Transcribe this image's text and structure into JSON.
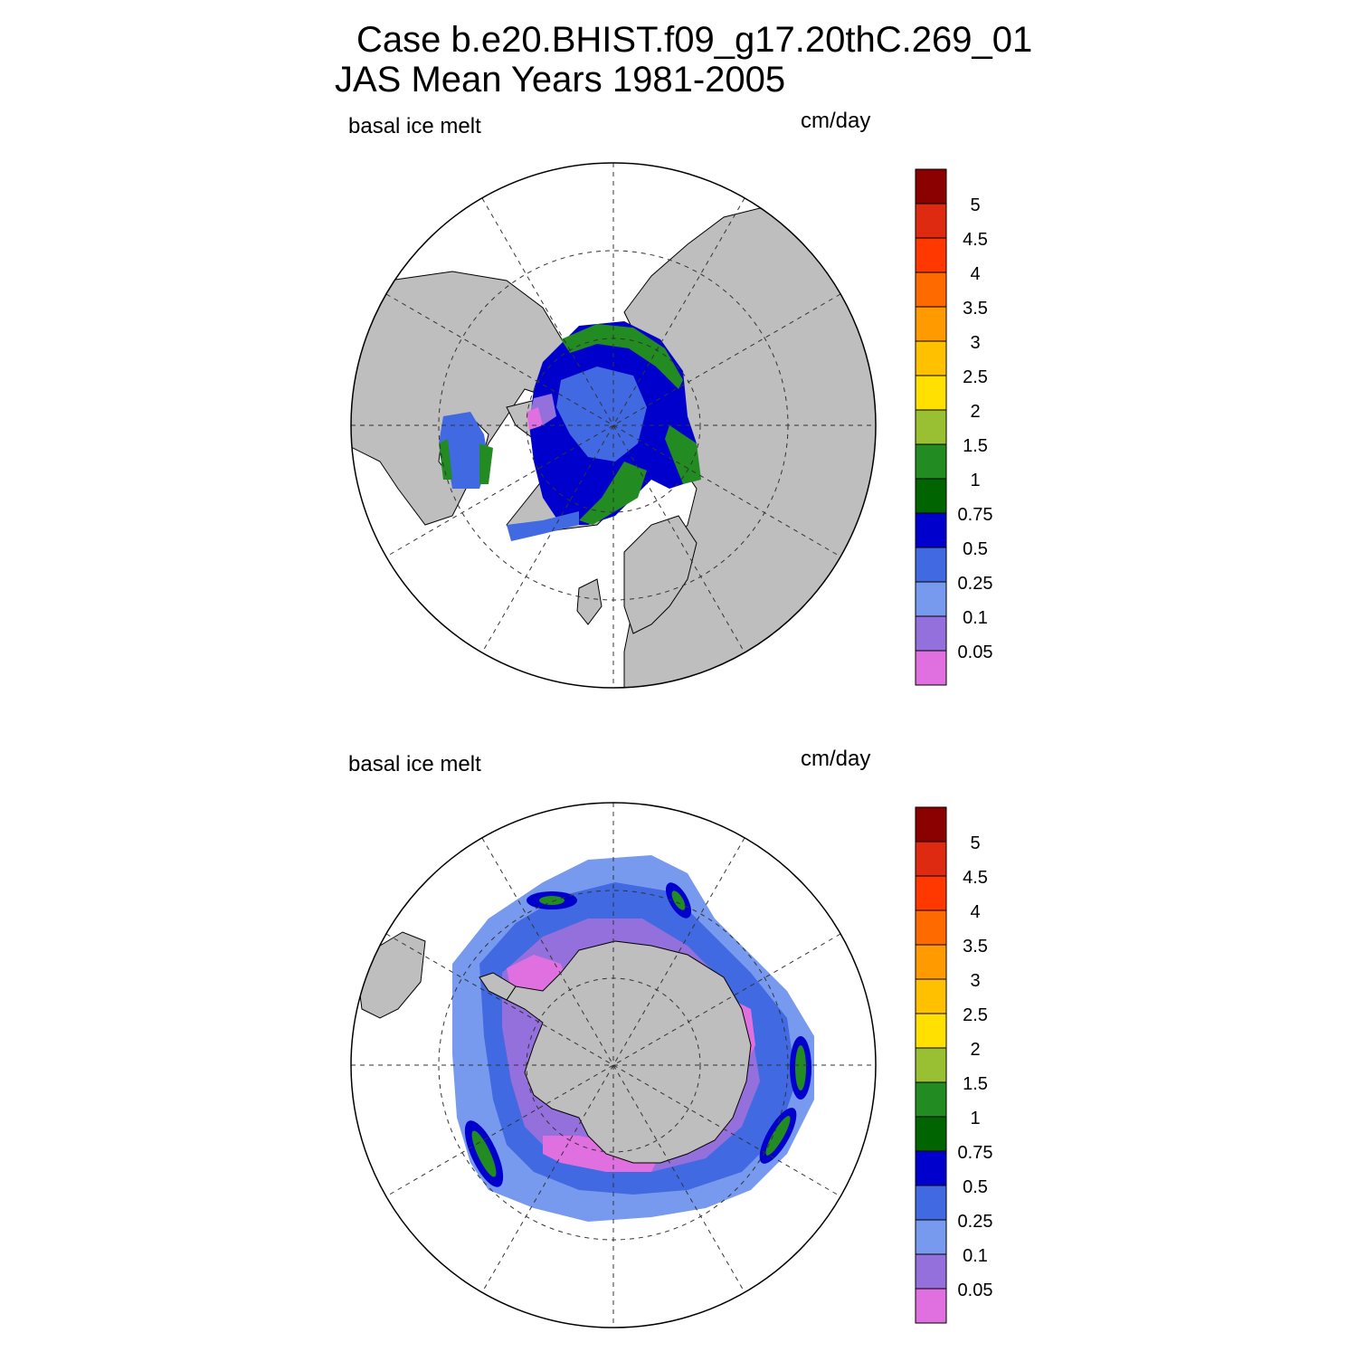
{
  "title": {
    "line1": "Case b.e20.BHIST.f09_g17.20thC.269_01",
    "line2": "JAS Mean   Years 1981-2005"
  },
  "panels": [
    {
      "id": "arctic",
      "variable_label": "basal ice melt",
      "units_label": "cm/day",
      "hemisphere": "north"
    },
    {
      "id": "antarctic",
      "variable_label": "basal ice melt",
      "units_label": "cm/day",
      "hemisphere": "south"
    }
  ],
  "colorbar": {
    "levels": [
      "5",
      "4.5",
      "4",
      "3.5",
      "3",
      "2.5",
      "2",
      "1.5",
      "1",
      "0.75",
      "0.5",
      "0.25",
      "0.1",
      "0.05"
    ],
    "colors": [
      "#8b0000",
      "#dd2a10",
      "#ff3800",
      "#ff6a00",
      "#ff9a00",
      "#ffc000",
      "#ffe000",
      "#99bf33",
      "#228b22",
      "#006400",
      "#0000cd",
      "#4169e1",
      "#7799ee",
      "#9370db",
      "#e070e0"
    ]
  },
  "map_colors": {
    "land": "#bebebe",
    "ocean": "#ffffff"
  }
}
